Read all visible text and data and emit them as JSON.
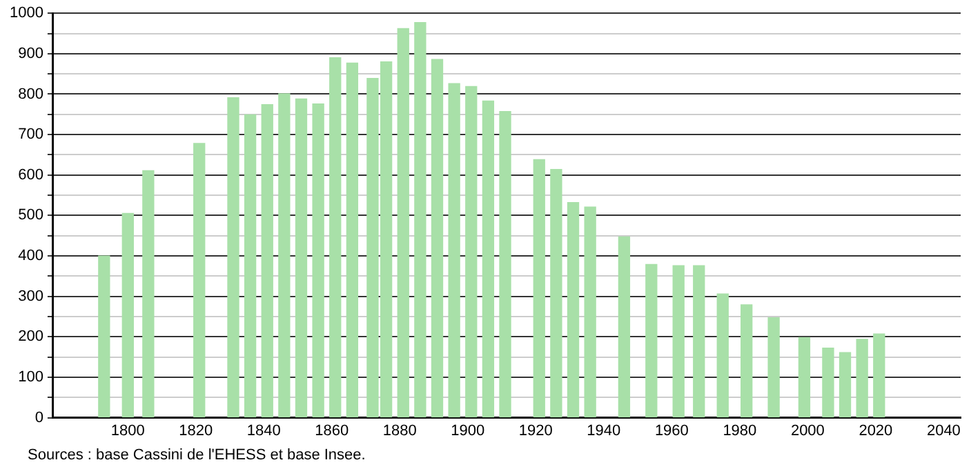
{
  "chart_data": {
    "type": "bar",
    "x": [
      1793,
      1800,
      1806,
      1821,
      1831,
      1836,
      1841,
      1846,
      1851,
      1856,
      1861,
      1866,
      1872,
      1876,
      1881,
      1886,
      1891,
      1896,
      1901,
      1906,
      1911,
      1921,
      1926,
      1931,
      1936,
      1946,
      1954,
      1962,
      1968,
      1975,
      1982,
      1990,
      1999,
      2006,
      2011,
      2016,
      2021
    ],
    "values": [
      400,
      505,
      611,
      678,
      791,
      749,
      774,
      801,
      788,
      776,
      890,
      877,
      839,
      880,
      962,
      977,
      886,
      826,
      819,
      783,
      757,
      638,
      614,
      532,
      521,
      447,
      379,
      376,
      376,
      306,
      279,
      247,
      198,
      172,
      161,
      194,
      207
    ],
    "color": "#a8e0a8",
    "xlim": [
      1778,
      2045
    ],
    "xticks": [
      1800,
      1820,
      1840,
      1860,
      1880,
      1900,
      1920,
      1940,
      1960,
      1980,
      2000,
      2020,
      2040
    ],
    "ylim": [
      0,
      1000
    ],
    "yticks": [
      0,
      {
        "value": 50,
        "label": null
      },
      100,
      {
        "value": 150,
        "label": null
      },
      200,
      {
        "value": 250,
        "label": null
      },
      300,
      {
        "value": 350,
        "label": null
      },
      400,
      {
        "value": 450,
        "label": null
      },
      500,
      {
        "value": 550,
        "label": null
      },
      600,
      {
        "value": 650,
        "label": null
      },
      700,
      {
        "value": 750,
        "label": null
      },
      800,
      {
        "value": 850,
        "label": null
      },
      900,
      {
        "value": 950,
        "label": null
      },
      1000
    ],
    "grid": "y",
    "legend": false,
    "annotations": [
      "Sources : base Cassini de l'EHESS et base Insee."
    ]
  }
}
